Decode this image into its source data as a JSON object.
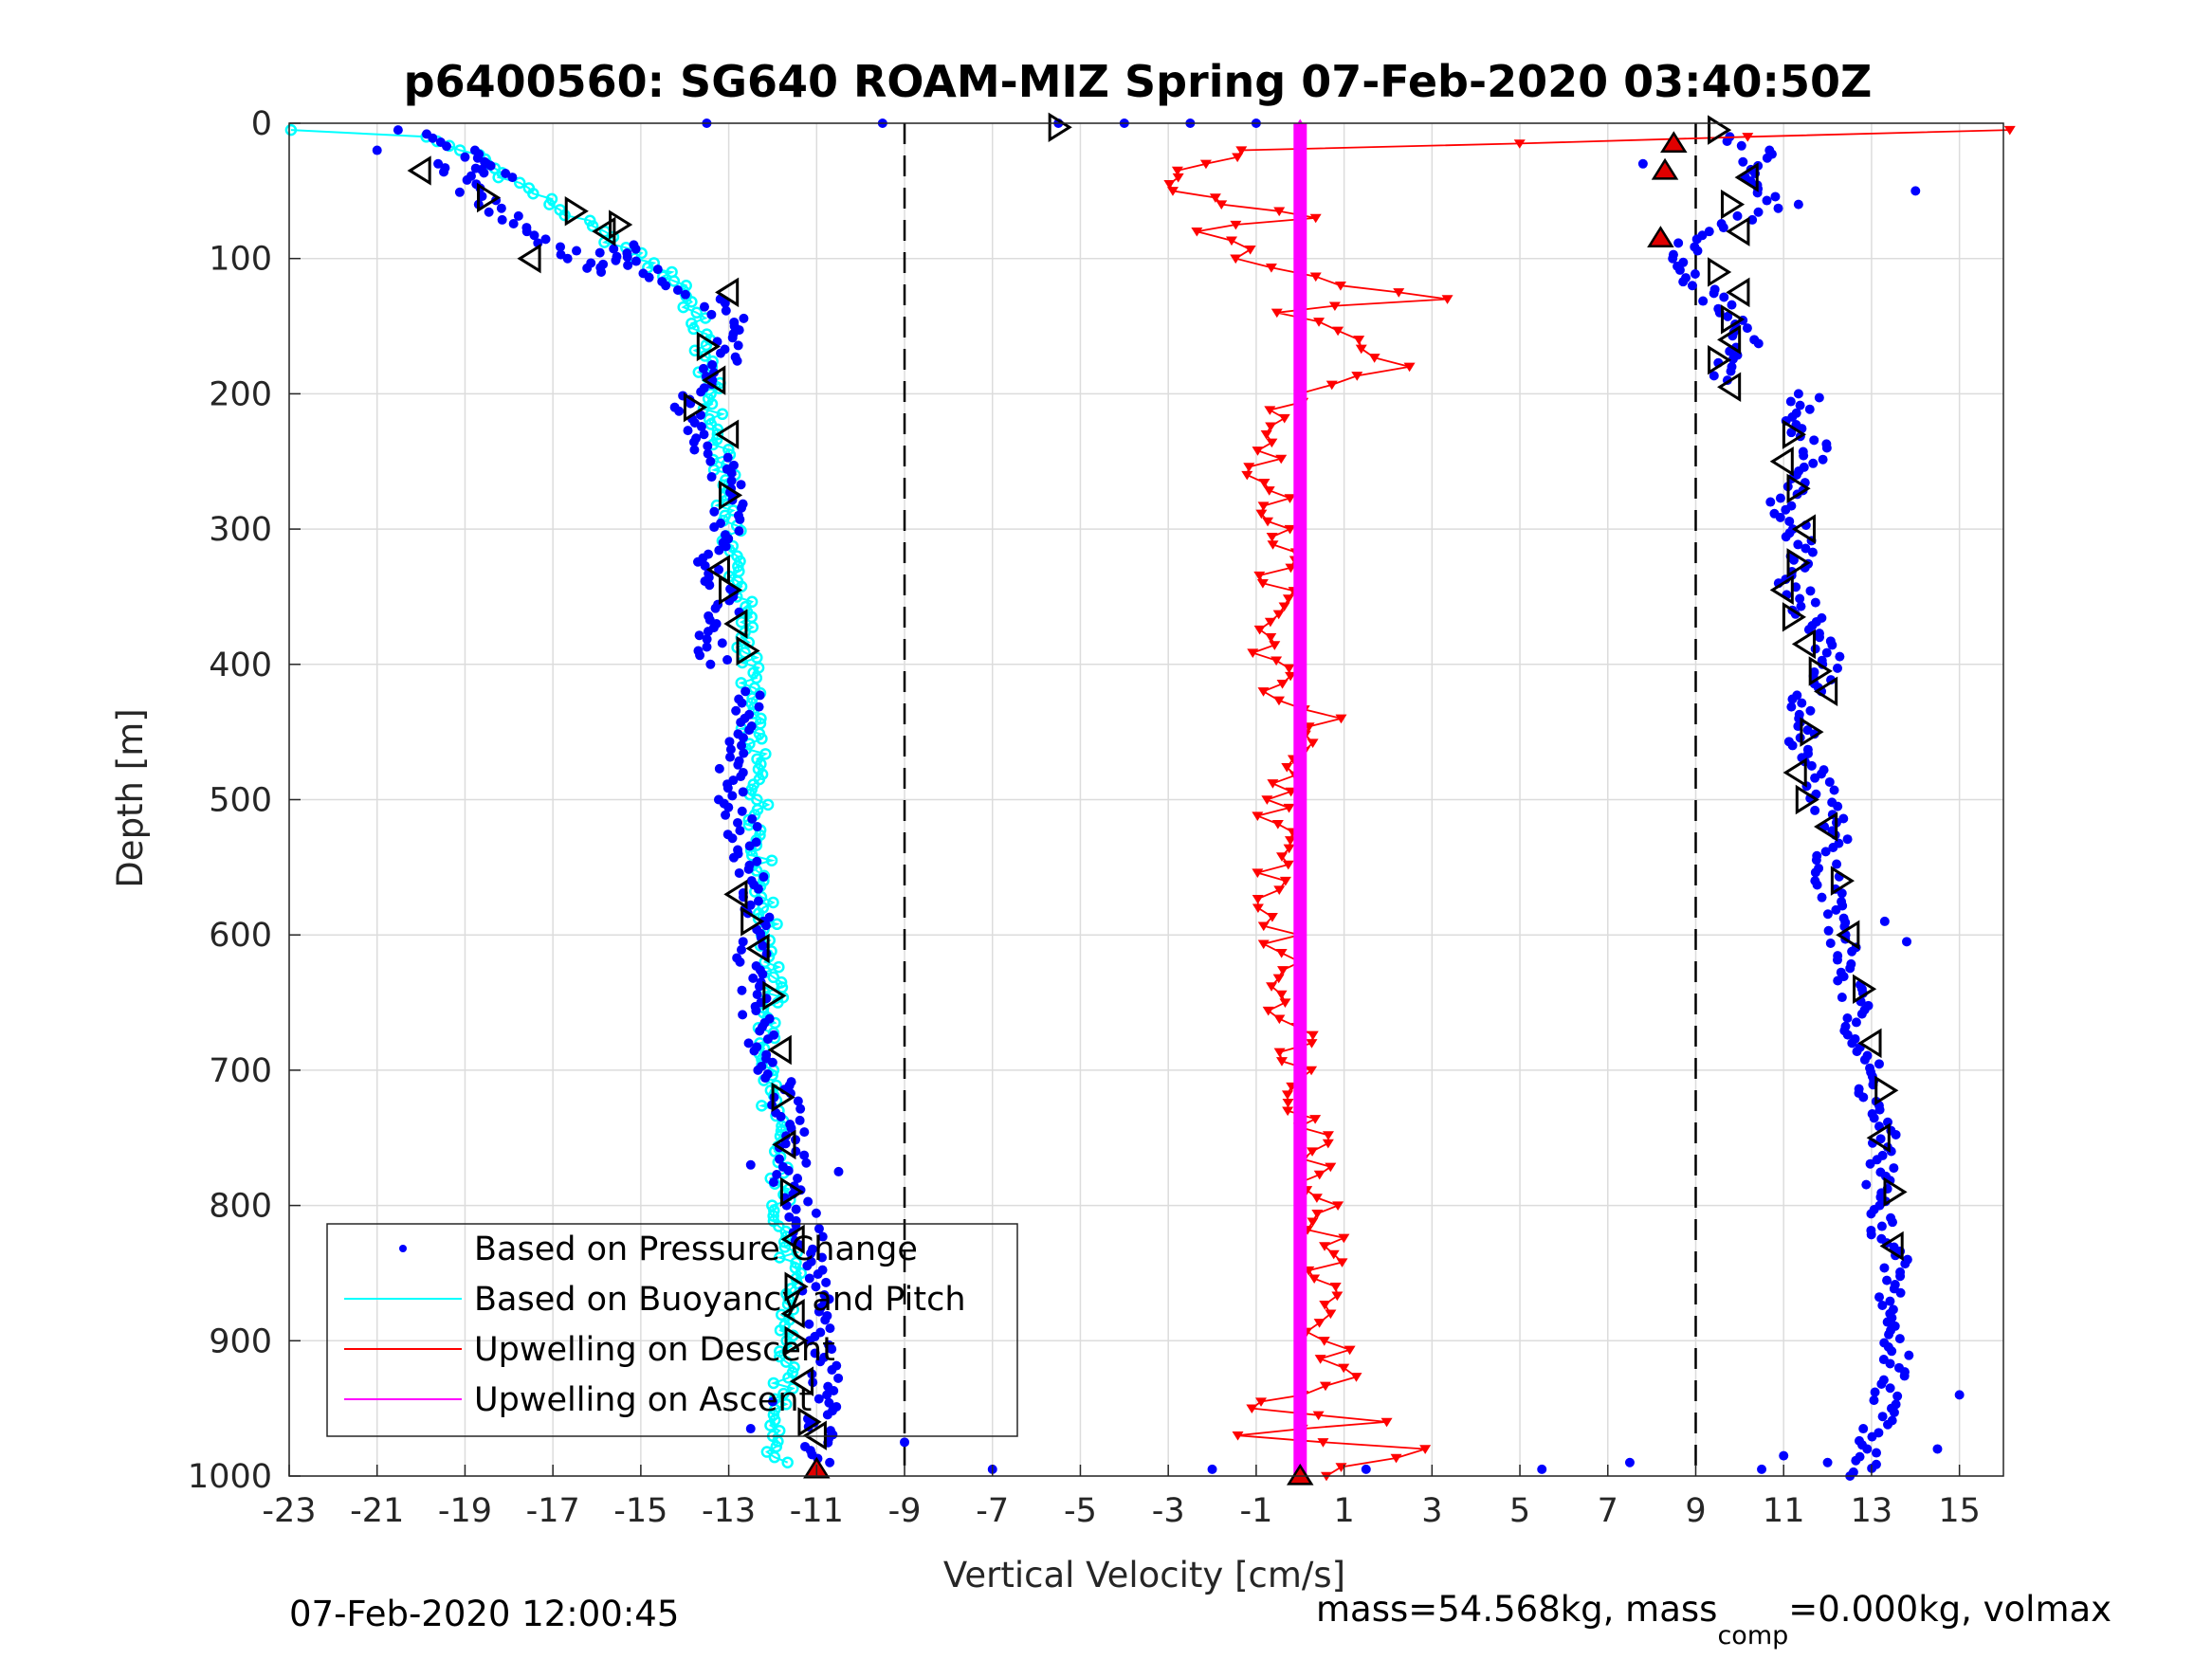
{
  "footer": {
    "timestamp": "07-Feb-2020 12:00:45",
    "mass_text": "mass=54.568kg, mass",
    "mass_sub": "comp",
    "mass_tail": "=0.000kg, volmax"
  },
  "chart_data": {
    "type": "scatter",
    "title": "p6400560: SG640 ROAM-MIZ Spring 07-Feb-2020 03:40:50Z",
    "xlabel": "Vertical Velocity [cm/s]",
    "ylabel": "Depth [m]",
    "xlim": [
      -23,
      16
    ],
    "ylim": [
      1000,
      0
    ],
    "y_reversed": true,
    "grid": true,
    "legend_position": "bottom-left",
    "xticks": [
      "-23",
      "-21",
      "-19",
      "-17",
      "-15",
      "-13",
      "-11",
      "-9",
      "-7",
      "-5",
      "-3",
      "-1",
      "1",
      "3",
      "5",
      "7",
      "9",
      "11",
      "13",
      "15"
    ],
    "yticks": [
      "0",
      "100",
      "200",
      "300",
      "400",
      "500",
      "600",
      "700",
      "800",
      "900",
      "1000"
    ],
    "reference_lines": {
      "x": [
        -9,
        9
      ],
      "style": "dashed",
      "color": "#000000"
    },
    "series": [
      {
        "name": "Based on Pressure Change",
        "style": "dots",
        "color": "#0000ff",
        "segments": [
          {
            "x": [
              -20.3,
              -19.0,
              -18.0,
              -19.5,
              -18.5,
              -17.5,
              -16.5,
              -16.0,
              -15.5,
              -14.5,
              -13.5,
              -12.8,
              -13.0,
              -13.5,
              -14.0,
              -13.8,
              -13.2,
              -13.0,
              -13.0,
              -13.2,
              -13.5,
              -12.8,
              -13.3,
              -13.5,
              -13.3
            ],
            "y": [
              5,
              20,
              40,
              30,
              60,
              80,
              100,
              110,
              90,
              120,
              130,
              150,
              170,
              190,
              210,
              230,
              250,
              270,
              290,
              310,
              330,
              350,
              370,
              390,
              400
            ]
          },
          {
            "x": [
              -12.5,
              -12.7,
              -12.9,
              -13.0,
              -12.9,
              -12.7,
              -12.6,
              -12.5,
              -12.4,
              -12.5,
              -12.4,
              -12.3,
              -12.0,
              -11.8,
              -11.5,
              -11.5,
              -11.7,
              -11.4,
              -11.2,
              -11.0,
              -10.9,
              -10.8,
              -11.0
            ],
            "y": [
              420,
              440,
              460,
              480,
              500,
              520,
              540,
              560,
              590,
              620,
              650,
              680,
              700,
              720,
              740,
              760,
              780,
              800,
              820,
              860,
              900,
              940,
              990
            ]
          },
          {
            "x": [
              11.5,
              11.3,
              11.8,
              11.6,
              11.0,
              11.3,
              11.4,
              11.2,
              11.5,
              11.8,
              12.0,
              11.6,
              11.3,
              11.5,
              11.8,
              12.2,
              12.0,
              12.3,
              12.5,
              12.8,
              13.0,
              13.3,
              13.1,
              13.5,
              13.4,
              13.6,
              13.3,
              13.0,
              12.8
            ],
            "y": [
              200,
              220,
              240,
              260,
              280,
              300,
              320,
              340,
              360,
              380,
              400,
              420,
              440,
              460,
              490,
              520,
              560,
              600,
              640,
              680,
              720,
              760,
              800,
              840,
              880,
              920,
              950,
              980,
              1000
            ]
          },
          {
            "x": [
              9.5,
              10.5,
              10.0,
              11.0,
              9.2,
              8.5,
              9.0,
              9.8,
              10.2,
              9.5,
              9.8
            ],
            "y": [
              10,
              20,
              40,
              60,
              80,
              100,
              120,
              140,
              160,
              180,
              190
            ]
          }
        ],
        "scattered_points": {
          "x": [
            -9.5,
            -13.5,
            -5.5,
            -4.0,
            -2.5,
            -1.0,
            -21.0,
            -19.0,
            -18.5,
            -9.0,
            -7.0,
            -2.0,
            1.5,
            5.5,
            7.5,
            10.5,
            11.0,
            12.0,
            14.5,
            15.0,
            -12.0,
            -12.5,
            13.3,
            13.8,
            -10.5,
            -12.5,
            7.8,
            14.0
          ],
          "y": [
            0,
            0,
            0,
            0,
            0,
            0,
            20,
            25,
            30,
            975,
            995,
            995,
            995,
            995,
            990,
            995,
            985,
            990,
            980,
            940,
            945,
            965,
            590,
            605,
            775,
            770,
            30,
            50
          ]
        }
      },
      {
        "name": "Based on Buoyancy and Pitch",
        "style": "line-with-markers",
        "color": "#00ffff",
        "x": [
          -22.8,
          -20.0,
          -19.0,
          -18.5,
          -18.0,
          -17.0,
          -16.0,
          -15.0,
          -14.5,
          -14.0,
          -13.8,
          -13.6,
          -13.5,
          -13.4,
          -13.3,
          -13.1,
          -13.0,
          -12.9,
          -12.7,
          -12.6,
          -12.5,
          -12.5,
          -12.4,
          -12.3,
          -12.3,
          -12.2,
          -12.2,
          -12.1,
          -12.0,
          -12.0,
          -12.2,
          -12.1,
          -12.0,
          -11.9,
          -11.8,
          -11.6,
          -11.7,
          -11.9
        ],
        "y": [
          5,
          10,
          20,
          30,
          40,
          60,
          80,
          100,
          110,
          120,
          140,
          160,
          180,
          200,
          230,
          260,
          290,
          320,
          350,
          380,
          410,
          440,
          470,
          500,
          530,
          560,
          580,
          600,
          620,
          650,
          680,
          700,
          730,
          760,
          800,
          850,
          900,
          990
        ]
      },
      {
        "name": "Upwelling on Descent",
        "style": "line-with-down-triangles",
        "color": "#ff0000",
        "x": [
          16.0,
          -1.0,
          -2.0,
          -3.0,
          -1.5,
          0.5,
          -2.5,
          -1.0,
          1.0,
          3.0,
          -0.5,
          1.5,
          2.5,
          0.0,
          -0.5,
          -1.0,
          -0.3,
          -0.5,
          -0.8,
          -0.5,
          0.5,
          -0.5,
          -0.4,
          -0.6,
          -0.5,
          -0.8,
          -0.5,
          -0.3,
          -0.3,
          0.0,
          0.0,
          0.2,
          0.5,
          0.5,
          0.6,
          0.5,
          0.8,
          0.5,
          1.0,
          0.5,
          -1.5,
          2.0,
          -1.5,
          2.5,
          0.5
        ],
        "y": [
          5,
          20,
          30,
          45,
          60,
          70,
          80,
          100,
          120,
          130,
          140,
          160,
          180,
          200,
          230,
          260,
          300,
          340,
          380,
          420,
          440,
          470,
          500,
          530,
          560,
          580,
          600,
          620,
          650,
          680,
          700,
          730,
          760,
          800,
          830,
          860,
          880,
          900,
          920,
          940,
          950,
          960,
          970,
          980,
          1000
        ]
      },
      {
        "name": "Upwelling on Ascent",
        "style": "line",
        "color": "#ff00ff",
        "x": [
          0.0,
          0.0,
          0.0,
          0.0,
          0.0,
          0.0,
          0.0,
          0.0,
          0.0,
          0.0,
          0.0
        ],
        "y": [
          0,
          100,
          200,
          300,
          400,
          500,
          600,
          700,
          800,
          900,
          1000
        ]
      },
      {
        "name": "",
        "style": "marker-markers",
        "color": "#000000",
        "descent_x": [
          -20,
          -18.5,
          -17.5,
          -16.5,
          -15.8,
          -15.5,
          -13.0,
          -13.5,
          -13.3,
          -13.8,
          -13.0,
          -13.0,
          -13.2,
          -13.0,
          -12.8,
          -12.6,
          -12.8,
          -12.5,
          -12.3,
          -12.0,
          -11.8,
          -11.8,
          -11.7,
          -11.6,
          -11.5,
          -11.5,
          -11.5,
          -11.5,
          -11.3,
          -11.2,
          -11.0
        ],
        "descent_y": [
          35,
          55,
          100,
          65,
          80,
          75,
          125,
          165,
          190,
          210,
          230,
          275,
          330,
          345,
          370,
          390,
          570,
          590,
          610,
          645,
          685,
          720,
          755,
          790,
          825,
          860,
          880,
          900,
          930,
          960,
          970
        ],
        "ascent_x": [
          9.5,
          10.2,
          9.8,
          10.0,
          9.5,
          10.0,
          9.8,
          9.8,
          9.5,
          9.8,
          11.2,
          11.0,
          11.3,
          11.5,
          11.3,
          11.0,
          11.2,
          11.5,
          11.8,
          12.0,
          11.6,
          11.3,
          11.5,
          12.0,
          12.3,
          12.5,
          12.8,
          13.0,
          13.3,
          13.2,
          13.5,
          13.5
        ],
        "ascent_y": [
          5,
          40,
          60,
          80,
          110,
          125,
          145,
          160,
          175,
          195,
          230,
          250,
          270,
          300,
          325,
          345,
          365,
          385,
          405,
          420,
          450,
          480,
          500,
          520,
          560,
          600,
          640,
          680,
          715,
          750,
          790,
          830
        ],
        "apex_points": {
          "x": [
            8.5,
            8.3,
            8.2,
            -11.0,
            0.0
          ],
          "y": [
            15,
            35,
            85,
            995,
            1000
          ]
        }
      }
    ]
  }
}
